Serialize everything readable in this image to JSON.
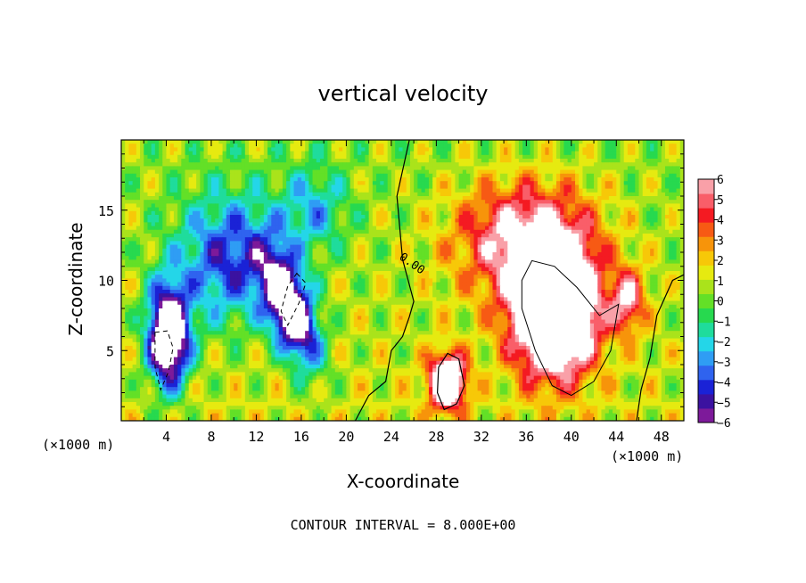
{
  "chart_data": {
    "type": "heatmap",
    "title": "vertical velocity",
    "xlabel": "X-coordinate",
    "ylabel": "Z-coordinate",
    "x_unit_left": "(×1000 m)",
    "x_unit_right": "(×1000 m)",
    "footer": "CONTOUR INTERVAL = 8.000E+00",
    "xlim": [
      0,
      50
    ],
    "ylim": [
      0,
      20
    ],
    "x_ticks": [
      4,
      8,
      12,
      16,
      20,
      24,
      28,
      32,
      36,
      40,
      44,
      48
    ],
    "y_ticks": [
      5,
      10,
      15
    ],
    "colorbar": {
      "ticks": [
        6,
        5,
        4,
        3,
        2,
        1,
        0,
        -1,
        -2,
        -3,
        -4,
        -5,
        -6
      ],
      "range": [
        -6,
        6
      ],
      "over_color": "#ffffff",
      "under_color": "#ffffff"
    },
    "contour_zero_label": "0.00",
    "features": [
      {
        "sign": "negative",
        "x": 4.2,
        "z": 6.0,
        "w": -12
      },
      {
        "sign": "negative",
        "x": 15.0,
        "z": 8.0,
        "w": -11
      },
      {
        "sign": "negative",
        "x": 9.5,
        "z": 11.0,
        "w": -5
      },
      {
        "sign": "positive",
        "x": 29.0,
        "z": 2.8,
        "w": 10
      },
      {
        "sign": "positive",
        "x": 39.0,
        "z": 7.5,
        "w": 14
      },
      {
        "sign": "positive",
        "x": 36.0,
        "z": 13.0,
        "w": 5
      }
    ]
  },
  "colors": {
    "palette": [
      "#7d1a9a",
      "#3b12a0",
      "#1a22d6",
      "#2f63ef",
      "#2f9df4",
      "#24d6e8",
      "#1fdc9c",
      "#27d94f",
      "#63e027",
      "#aae31b",
      "#e6ea10",
      "#f7c808",
      "#f7940a",
      "#f75a14",
      "#f41a22",
      "#f95e69",
      "#f9a0a8"
    ]
  }
}
